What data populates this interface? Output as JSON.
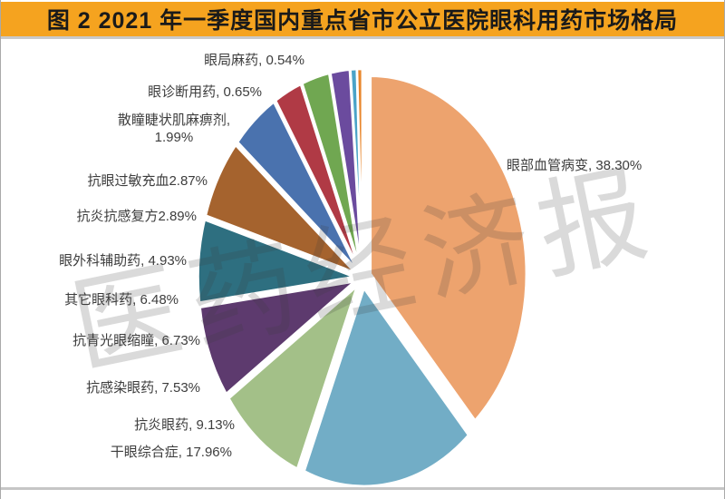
{
  "figure": {
    "title": "图 2  2021 年一季度国内重点省市公立医院眼科用药市场格局",
    "title_bar_color": "#F5A31F",
    "title_text_color": "#1A1A1A"
  },
  "watermark": {
    "text": "医药经济报"
  },
  "chart_data": {
    "type": "pie",
    "title": "图 2  2021 年一季度国内重点省市公立医院眼科用药市场格局",
    "unit": "%",
    "start_angle_deg": 0,
    "direction": "clockwise",
    "exploded": true,
    "legend": "none",
    "watermark": "医药经济报",
    "slices": [
      {
        "name": "眼部血管病变",
        "value": 38.3,
        "label": "眼部血管病变, 38.30%",
        "color": "#EDA36E"
      },
      {
        "name": "干眼综合症",
        "value": 17.96,
        "label": "干眼综合症, 17.96%",
        "color": "#72ADC6"
      },
      {
        "name": "抗炎眼药",
        "value": 9.13,
        "label": "抗炎眼药, 9.13%",
        "color": "#A3C088"
      },
      {
        "name": "抗感染眼药",
        "value": 7.53,
        "label": "抗感染眼药, 7.53%",
        "color": "#5D3A6E"
      },
      {
        "name": "抗青光眼缩瞳",
        "value": 6.73,
        "label": "抗青光眼缩瞳, 6.73%",
        "color": "#2E6F80"
      },
      {
        "name": "其它眼科药",
        "value": 6.48,
        "label": "其它眼科药, 6.48%",
        "color": "#A5632E"
      },
      {
        "name": "眼外科辅助药",
        "value": 4.93,
        "label": "眼外科辅助药, 4.93%",
        "color": "#4A72AE"
      },
      {
        "name": "抗炎抗感复方",
        "value": 2.89,
        "label": "抗炎抗感复方2.89%",
        "color": "#B03A45"
      },
      {
        "name": "抗眼过敏充血",
        "value": 2.87,
        "label": "抗眼过敏充血2.87%",
        "color": "#70A751"
      },
      {
        "name": "散瞳睫状肌麻痹剂",
        "value": 1.99,
        "label": "散瞳睫状肌麻痹剂,\n1.99%",
        "color": "#6B4B9E"
      },
      {
        "name": "眼诊断用药",
        "value": 0.65,
        "label": "眼诊断用药, 0.65%",
        "color": "#4AA3C8"
      },
      {
        "name": "眼局麻药",
        "value": 0.54,
        "label": "眼局麻药, 0.54%",
        "color": "#E8862C"
      }
    ]
  }
}
